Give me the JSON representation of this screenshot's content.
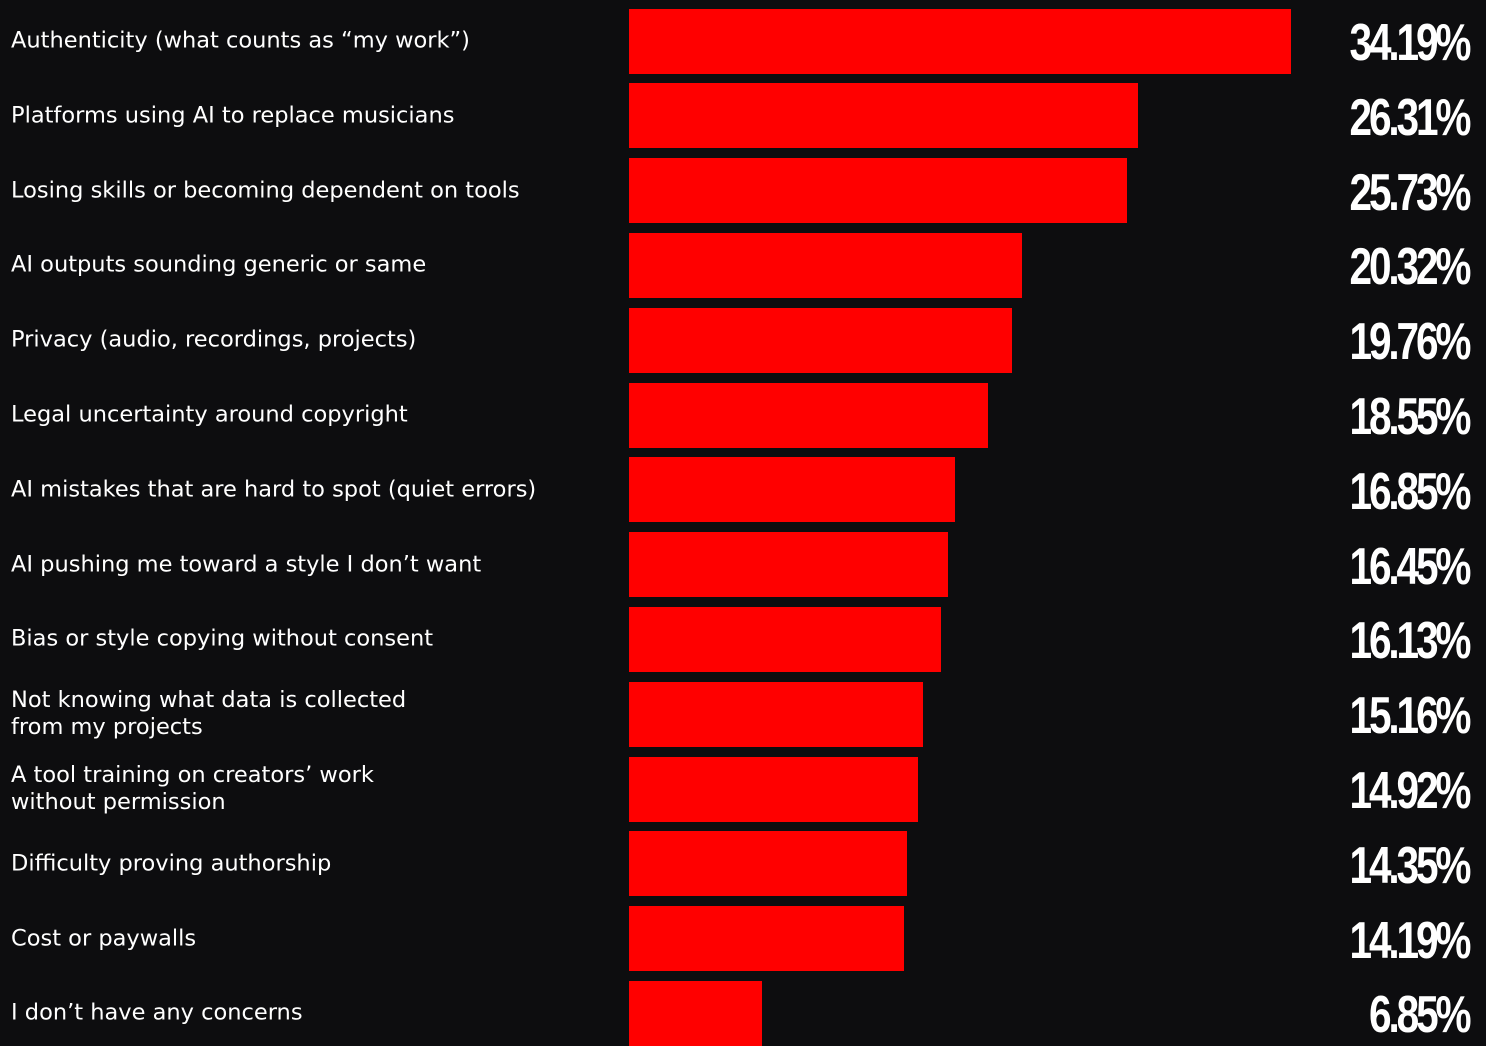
{
  "chart_data": {
    "type": "bar",
    "orientation": "horizontal",
    "categories": [
      "Authenticity (what counts as “my work”)",
      "Platforms using AI to replace musicians",
      "Losing skills or becoming dependent on tools",
      "AI outputs sounding generic or same",
      "Privacy (audio, recordings, projects)",
      "Legal uncertainty around copyright",
      "AI mistakes that are hard to spot (quiet errors)",
      "AI pushing me toward a style I don’t want",
      "Bias or style copying without consent",
      "Not knowing what data is collected\nfrom my projects",
      "A tool training on creators’ work\nwithout permission",
      "Difficulty proving authorship",
      "Cost or paywalls",
      "I don’t have any concerns"
    ],
    "values": [
      34.19,
      26.31,
      25.73,
      20.32,
      19.76,
      18.55,
      16.85,
      16.45,
      16.13,
      15.16,
      14.92,
      14.35,
      14.19,
      6.85
    ],
    "value_labels": [
      "34.19%",
      "26.31%",
      "25.73%",
      "20.32%",
      "19.76%",
      "18.55%",
      "16.85%",
      "16.45%",
      "16.13%",
      "15.16%",
      "14.92%",
      "14.35%",
      "14.19%",
      "6.85%"
    ],
    "unit": "%",
    "xlim": [
      0,
      34.19
    ],
    "grid": false,
    "legend": "none",
    "colors": {
      "bar": "#ff0000",
      "background": "#0d0d0f",
      "text": "#ffffff"
    }
  }
}
